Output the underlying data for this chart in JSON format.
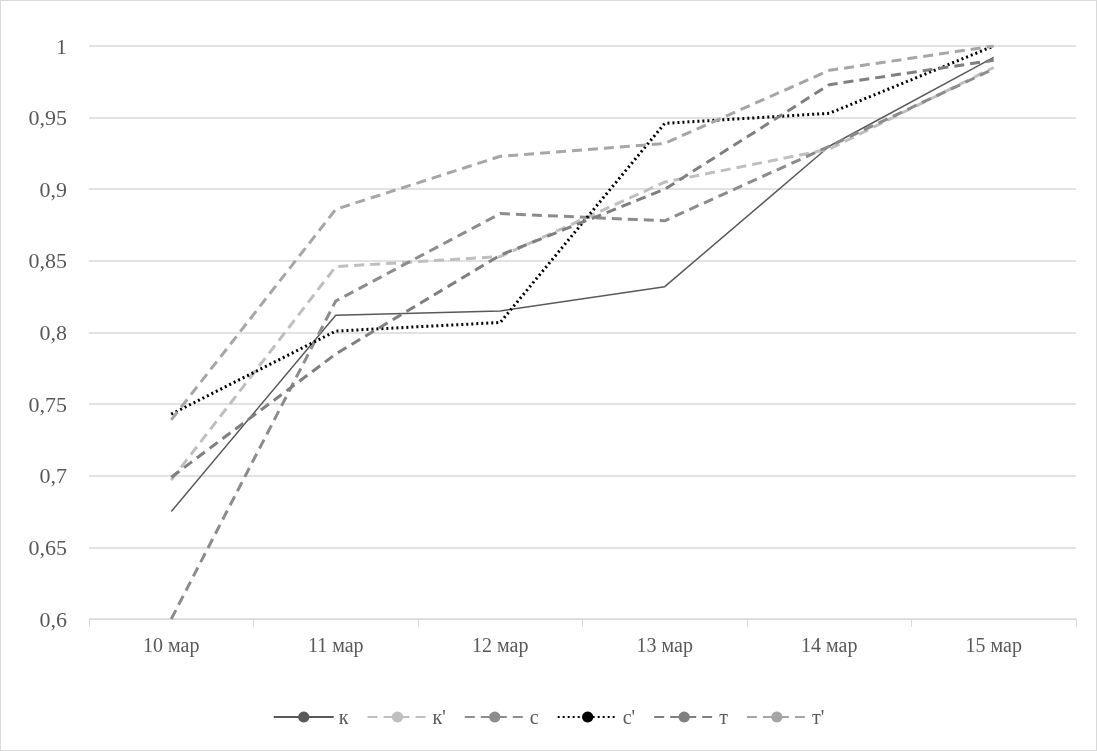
{
  "chart_data": {
    "type": "line",
    "categories": [
      "10 мар",
      "11 мар",
      "12 мар",
      "13 мар",
      "14 мар",
      "15 мар"
    ],
    "series": [
      {
        "name": "к",
        "color": "#595959",
        "line_style": "solid",
        "values": [
          0.675,
          0.812,
          0.815,
          0.832,
          0.93,
          0.992
        ]
      },
      {
        "name": "к'",
        "color": "#bfbfbf",
        "line_style": "dashed",
        "values": [
          0.697,
          0.846,
          0.853,
          0.905,
          0.928,
          0.985
        ]
      },
      {
        "name": "с",
        "color": "#8c8c8c",
        "line_style": "dashed",
        "values": [
          0.6,
          0.822,
          0.883,
          0.878,
          0.93,
          0.984
        ]
      },
      {
        "name": "с'",
        "color": "#000000",
        "line_style": "dotted",
        "values": [
          0.743,
          0.801,
          0.807,
          0.946,
          0.953,
          1.0
        ]
      },
      {
        "name": "т",
        "color": "#7f7f7f",
        "line_style": "dashed",
        "values": [
          0.699,
          0.785,
          0.854,
          0.9,
          0.973,
          0.99
        ]
      },
      {
        "name": "т'",
        "color": "#a6a6a6",
        "line_style": "dashed",
        "values": [
          0.739,
          0.886,
          0.923,
          0.932,
          0.983,
          1.0
        ]
      }
    ],
    "ylim": [
      0.6,
      1
    ],
    "yticks": [
      {
        "value": 0.6,
        "label": "0,6"
      },
      {
        "value": 0.65,
        "label": "0,65"
      },
      {
        "value": 0.7,
        "label": "0,7"
      },
      {
        "value": 0.75,
        "label": "0,75"
      },
      {
        "value": 0.8,
        "label": "0,8"
      },
      {
        "value": 0.85,
        "label": "0,85"
      },
      {
        "value": 0.9,
        "label": "0,9"
      },
      {
        "value": 0.95,
        "label": "0,95"
      },
      {
        "value": 1,
        "label": "1"
      }
    ],
    "grid": "y",
    "legend": "bottom",
    "marker": "none"
  }
}
